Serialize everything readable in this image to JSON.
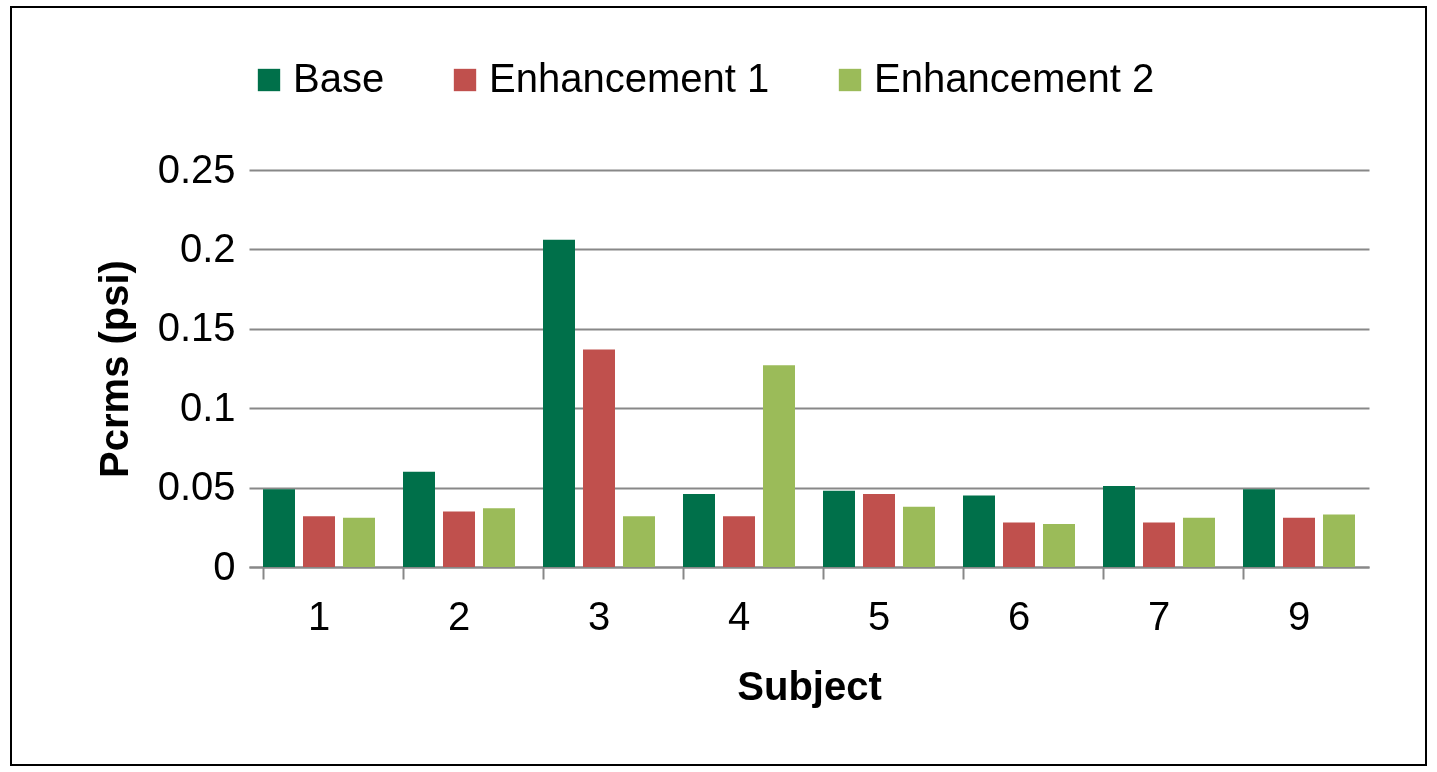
{
  "chart_data": {
    "type": "bar",
    "xlabel": "Subject",
    "ylabel": "Pcrms (psi)",
    "categories": [
      "1",
      "2",
      "3",
      "4",
      "5",
      "6",
      "7",
      "9"
    ],
    "series": [
      {
        "name": "Base",
        "color": "#00704a",
        "values": [
          0.049,
          0.06,
          0.206,
          0.046,
          0.048,
          0.045,
          0.051,
          0.049
        ]
      },
      {
        "name": "Enhancement 1",
        "color": "#c0504d",
        "values": [
          0.032,
          0.035,
          0.137,
          0.032,
          0.046,
          0.028,
          0.028,
          0.031
        ]
      },
      {
        "name": "Enhancement 2",
        "color": "#9bbb59",
        "values": [
          0.031,
          0.037,
          0.032,
          0.127,
          0.038,
          0.027,
          0.031,
          0.033
        ]
      }
    ],
    "ylim": [
      0,
      0.25
    ],
    "yticks": [
      0,
      0.05,
      0.1,
      0.15,
      0.2,
      0.25
    ],
    "grid": "y",
    "legend": "top"
  }
}
